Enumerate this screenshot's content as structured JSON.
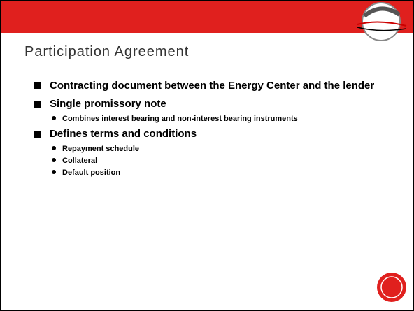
{
  "title": "Participation Agreement",
  "bullets": [
    {
      "text": "Contracting document between the Energy Center and the lender",
      "sub": []
    },
    {
      "text": "Single promissory note",
      "sub": [
        "Combines interest bearing and non-interest bearing instruments"
      ]
    },
    {
      "text": "Defines terms and conditions",
      "sub": [
        "Repayment schedule",
        "Collateral",
        "Default position"
      ]
    }
  ]
}
